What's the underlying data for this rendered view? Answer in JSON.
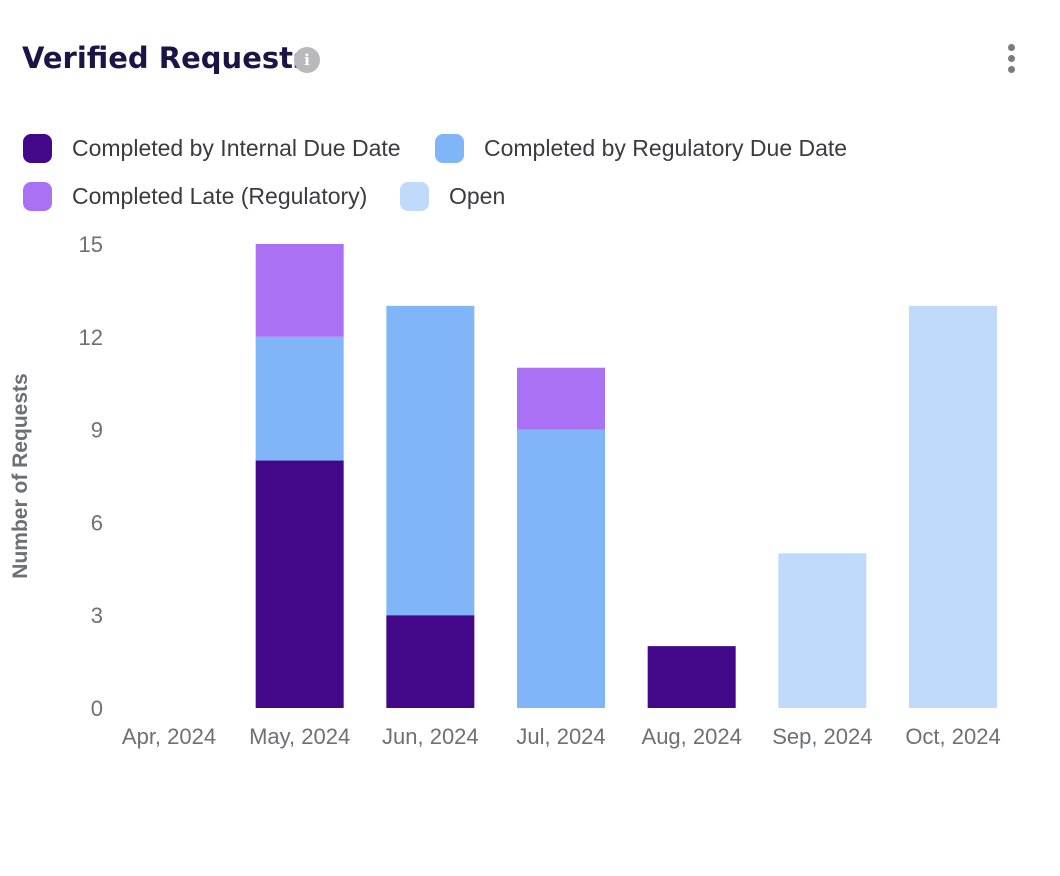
{
  "header": {
    "title": "Verified Requests",
    "info_icon": "info-icon",
    "info_glyph": "i",
    "menu_icon": "more-vertical-icon"
  },
  "colors": {
    "internal": "#43078a",
    "regulatory": "#80b5f8",
    "late": "#ab71f5",
    "open": "#bfdafb",
    "axis_text": "#6e6f77",
    "title": "#1c1446"
  },
  "chart_data": {
    "type": "bar",
    "stacked": true,
    "title": "Verified Requests",
    "xlabel": "",
    "ylabel": "Number of Requests",
    "ylim": [
      0,
      15
    ],
    "yticks": [
      0,
      3,
      6,
      9,
      12,
      15
    ],
    "grid": false,
    "legend_position": "top-left",
    "categories": [
      "Apr, 2024",
      "May, 2024",
      "Jun, 2024",
      "Jul, 2024",
      "Aug, 2024",
      "Sep, 2024",
      "Oct, 2024"
    ],
    "series": [
      {
        "name": "Completed by Internal Due Date",
        "color": "#43078a",
        "values": [
          0,
          8,
          3,
          0,
          2,
          0,
          0
        ]
      },
      {
        "name": "Completed by Regulatory Due Date",
        "color": "#80b5f8",
        "values": [
          0,
          4,
          10,
          9,
          0,
          0,
          0
        ]
      },
      {
        "name": "Completed Late (Regulatory)",
        "color": "#ab71f5",
        "values": [
          0,
          3,
          0,
          2,
          0,
          0,
          0
        ]
      },
      {
        "name": "Open",
        "color": "#bfdafb",
        "values": [
          0,
          0,
          0,
          0,
          0,
          5,
          13
        ]
      }
    ]
  }
}
